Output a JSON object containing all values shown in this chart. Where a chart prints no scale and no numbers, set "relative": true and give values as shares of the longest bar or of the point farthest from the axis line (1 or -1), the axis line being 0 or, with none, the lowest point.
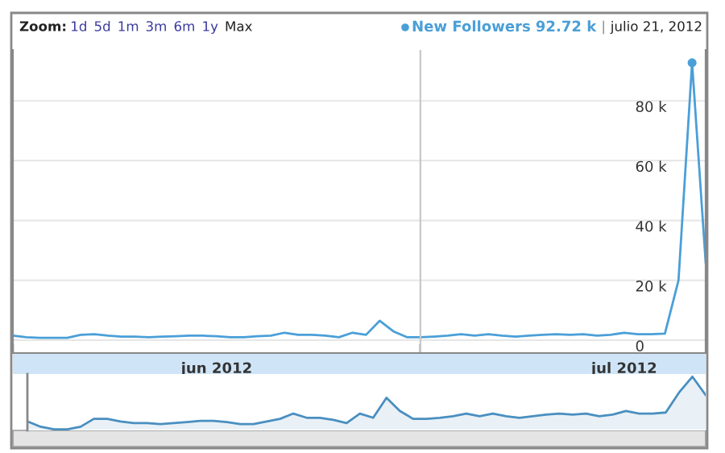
{
  "chart_data": [
    {
      "type": "line",
      "legend": "top right",
      "grid": "y",
      "marker": "none",
      "line_style": "solid",
      "annotations": [
        "Zoom:",
        "1d",
        "5d",
        "1m",
        "3m",
        "6m",
        "1y",
        "Max",
        "92.72 k",
        "|",
        "julio 21, 2012"
      ],
      "x": [
        "2012-06-01",
        "2012-06-02",
        "2012-06-03",
        "2012-06-04",
        "2012-06-05",
        "2012-06-06",
        "2012-06-07",
        "2012-06-08",
        "2012-06-09",
        "2012-06-10",
        "2012-06-11",
        "2012-06-12",
        "2012-06-13",
        "2012-06-14",
        "2012-06-15",
        "2012-06-16",
        "2012-06-17",
        "2012-06-18",
        "2012-06-19",
        "2012-06-20",
        "2012-06-21",
        "2012-06-22",
        "2012-06-23",
        "2012-06-24",
        "2012-06-25",
        "2012-06-26",
        "2012-06-27",
        "2012-06-28",
        "2012-06-29",
        "2012-06-30",
        "2012-07-01",
        "2012-07-02",
        "2012-07-03",
        "2012-07-04",
        "2012-07-05",
        "2012-07-06",
        "2012-07-07",
        "2012-07-08",
        "2012-07-09",
        "2012-07-10",
        "2012-07-11",
        "2012-07-12",
        "2012-07-13",
        "2012-07-14",
        "2012-07-15",
        "2012-07-16",
        "2012-07-17",
        "2012-07-18",
        "2012-07-19",
        "2012-07-20",
        "2012-07-21",
        "2012-07-22"
      ],
      "series": [
        {
          "name": "New Followers",
          "color": "#4a9fd8",
          "values": [
            1.5,
            1,
            0.8,
            0.8,
            0.8,
            1.8,
            2.0,
            1.5,
            1.2,
            1.2,
            1.0,
            1.2,
            1.3,
            1.5,
            1.5,
            1.3,
            1.0,
            1.0,
            1.3,
            1.5,
            2.5,
            1.8,
            1.8,
            1.5,
            1.0,
            2.5,
            1.8,
            6.5,
            3.0,
            1.0,
            1.0,
            1.2,
            1.5,
            2.0,
            1.5,
            2.0,
            1.5,
            1.2,
            1.5,
            1.8,
            2.0,
            1.8,
            2.0,
            1.5,
            1.8,
            2.5,
            2.0,
            2.0,
            2.2,
            20,
            92.72,
            26
          ]
        }
      ],
      "xlim": [
        "2012-06-01",
        "2012-07-22"
      ],
      "ylim": [
        -4.3,
        97
      ],
      "xticks": [
        {
          "value": "2012-06-01",
          "label": null
        },
        {
          "value": "2012-06-16",
          "label": "jun 2012"
        },
        {
          "value": "2012-07-01",
          "label": null
        },
        {
          "value": "2012-07-16",
          "label": "jul 2012"
        }
      ],
      "yticks": [
        {
          "value": 0,
          "label": "0"
        },
        {
          "value": 20,
          "label": "20 k"
        },
        {
          "value": 40,
          "label": "40 k"
        },
        {
          "value": 60,
          "label": "60 k"
        },
        {
          "value": 80,
          "label": "80 k"
        }
      ],
      "ref_lines": [
        {
          "axis": "x",
          "value": "2012-07-01",
          "color": "#c8c8c8"
        }
      ]
    },
    {
      "type": "area",
      "relative": true,
      "categories": [
        null,
        null,
        null,
        null,
        null,
        null,
        null,
        null,
        null,
        null,
        null,
        null,
        null,
        null,
        null,
        null,
        null,
        null,
        null,
        null,
        null,
        null,
        null,
        null,
        null,
        null,
        null,
        null,
        null,
        null,
        null,
        null,
        null,
        null,
        null,
        null,
        null,
        null,
        null,
        null,
        null,
        null,
        null,
        null,
        null,
        null,
        null,
        null,
        null,
        null,
        null,
        null
      ],
      "series": [
        {
          "color": "#4a8fc0",
          "values": [
            0.15,
            0.05,
            0,
            0,
            0.05,
            0.2,
            0.2,
            0.15,
            0.12,
            0.12,
            0.1,
            0.12,
            0.14,
            0.16,
            0.16,
            0.14,
            0.1,
            0.1,
            0.15,
            0.2,
            0.3,
            0.22,
            0.22,
            0.18,
            0.12,
            0.3,
            0.22,
            0.6,
            0.35,
            0.2,
            0.2,
            0.22,
            0.25,
            0.3,
            0.25,
            0.3,
            0.25,
            0.22,
            0.25,
            0.28,
            0.3,
            0.28,
            0.3,
            0.25,
            0.28,
            0.35,
            0.3,
            0.3,
            0.32,
            0.7,
            1,
            0.65
          ]
        }
      ]
    }
  ]
}
